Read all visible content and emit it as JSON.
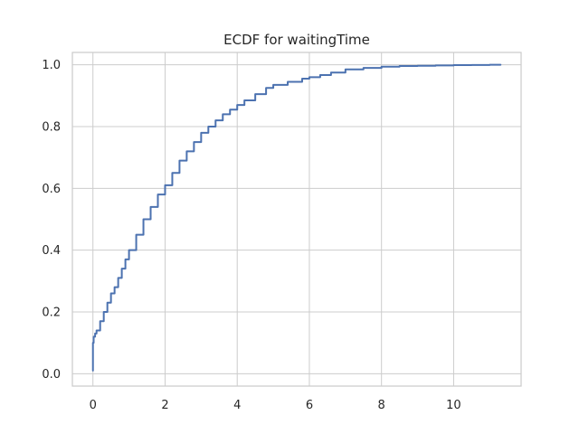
{
  "chart_data": {
    "type": "line",
    "title": "ECDF for waitingTime",
    "xlabel": "",
    "ylabel": "",
    "xlim": [
      -0.57,
      11.87
    ],
    "ylim": [
      -0.04,
      1.04
    ],
    "xticks": [
      0,
      2,
      4,
      6,
      8,
      10
    ],
    "yticks": [
      0.0,
      0.2,
      0.4,
      0.6,
      0.8,
      1.0
    ],
    "xtick_labels": [
      "0",
      "2",
      "4",
      "6",
      "8",
      "10"
    ],
    "ytick_labels": [
      "0.0",
      "0.2",
      "0.4",
      "0.6",
      "0.8",
      "1.0"
    ],
    "grid": true,
    "legend": "none",
    "series": [
      {
        "color": "#4c72b0",
        "x": [
          0.0,
          0.0,
          0.02,
          0.06,
          0.1,
          0.2,
          0.3,
          0.4,
          0.5,
          0.6,
          0.7,
          0.8,
          0.9,
          1.0,
          1.2,
          1.4,
          1.6,
          1.8,
          2.0,
          2.2,
          2.4,
          2.6,
          2.8,
          3.0,
          3.2,
          3.4,
          3.6,
          3.8,
          4.0,
          4.2,
          4.5,
          4.8,
          5.0,
          5.4,
          5.8,
          6.0,
          6.3,
          6.6,
          7.0,
          7.5,
          8.0,
          8.5,
          9.0,
          9.5,
          10.0,
          10.5,
          11.0,
          11.3
        ],
        "y": [
          0.01,
          0.1,
          0.12,
          0.13,
          0.14,
          0.17,
          0.2,
          0.23,
          0.26,
          0.28,
          0.31,
          0.34,
          0.37,
          0.4,
          0.45,
          0.5,
          0.54,
          0.58,
          0.61,
          0.65,
          0.69,
          0.72,
          0.75,
          0.78,
          0.8,
          0.82,
          0.84,
          0.855,
          0.87,
          0.885,
          0.905,
          0.925,
          0.935,
          0.945,
          0.955,
          0.96,
          0.967,
          0.975,
          0.985,
          0.99,
          0.994,
          0.996,
          0.997,
          0.998,
          0.999,
          0.9995,
          1.0,
          1.0
        ]
      }
    ]
  }
}
